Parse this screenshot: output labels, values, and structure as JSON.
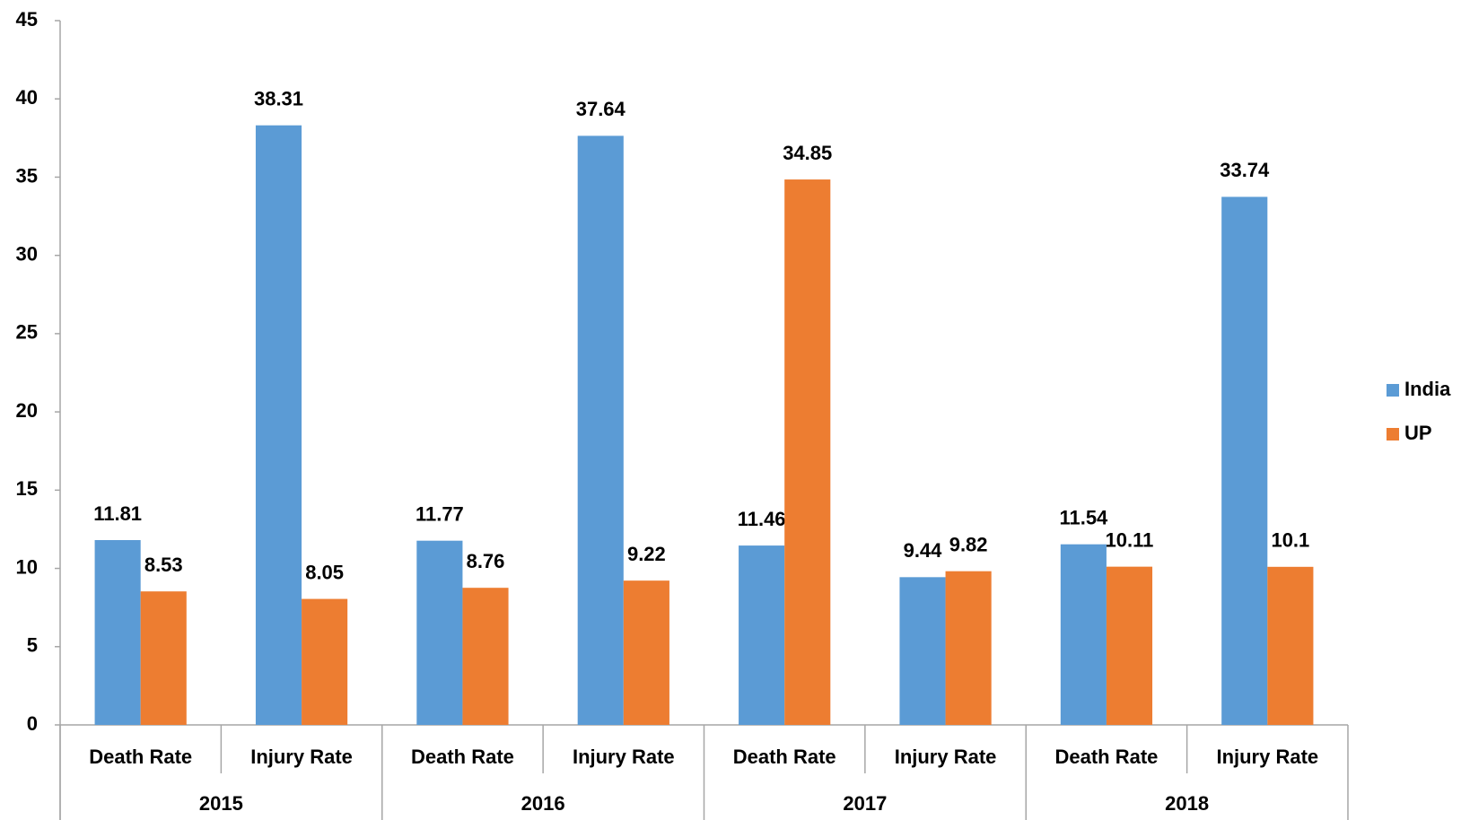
{
  "chart_data": {
    "type": "bar",
    "categories": [
      "Death Rate",
      "Injury Rate",
      "Death Rate",
      "Injury Rate",
      "Death Rate",
      "Injury Rate",
      "Death Rate",
      "Injury Rate"
    ],
    "groups": [
      "2015",
      "2016",
      "2017",
      "2018"
    ],
    "series": [
      {
        "name": "India",
        "color": "#5b9bd5",
        "values": [
          11.81,
          38.31,
          11.77,
          37.64,
          11.46,
          9.44,
          11.54,
          33.74
        ]
      },
      {
        "name": "UP",
        "color": "#ed7d31",
        "values": [
          8.53,
          8.05,
          8.76,
          9.22,
          34.85,
          9.82,
          10.11,
          10.1
        ]
      }
    ],
    "ylim": [
      0,
      45
    ],
    "yticks": [
      0,
      5,
      10,
      15,
      20,
      25,
      30,
      35,
      40,
      45
    ],
    "grid": false,
    "legend": "right"
  }
}
